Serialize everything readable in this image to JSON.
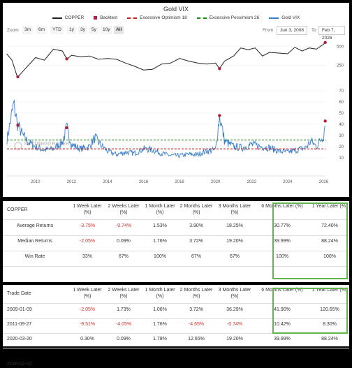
{
  "chart_data": {
    "type": "line",
    "title": "Gold VIX",
    "legend": [
      "COPPER",
      "Backtest",
      "Excessive Optimism 18",
      "Excessive Pessimism 26",
      "Gold VIX"
    ],
    "legend_position": "top",
    "x_ticks": [
      "2010",
      "2012",
      "2014",
      "2016",
      "2018",
      "2020",
      "2022",
      "2024",
      "2026"
    ],
    "x_range": [
      "2008-06-03",
      "2026-02-07"
    ],
    "upper_panel": {
      "name": "COPPER",
      "y_ticks": [
        250,
        500
      ],
      "scale": "log",
      "x": [
        2008.4,
        2008.7,
        2009.0,
        2009.5,
        2010.0,
        2010.5,
        2011.0,
        2011.5,
        2011.75,
        2012.0,
        2012.5,
        2013.0,
        2013.5,
        2014.0,
        2014.5,
        2015.0,
        2015.5,
        2016.0,
        2016.5,
        2017.0,
        2017.5,
        2018.0,
        2018.5,
        2019.0,
        2019.5,
        2020.0,
        2020.22,
        2020.5,
        2021.0,
        2021.4,
        2021.8,
        2022.2,
        2022.6,
        2023.0,
        2023.5,
        2024.0,
        2024.4,
        2024.8,
        2025.2,
        2025.6,
        2026.0,
        2026.1
      ],
      "values": [
        380,
        300,
        160,
        230,
        330,
        300,
        450,
        420,
        310,
        360,
        340,
        350,
        310,
        320,
        310,
        270,
        240,
        210,
        215,
        260,
        270,
        320,
        290,
        270,
        260,
        270,
        220,
        290,
        350,
        470,
        440,
        470,
        350,
        400,
        390,
        380,
        480,
        420,
        470,
        450,
        540,
        580
      ]
    },
    "lower_panel": {
      "name": "Gold VIX",
      "y_ticks": [
        10,
        20,
        30,
        40,
        50,
        60,
        70
      ],
      "ylim": [
        0,
        70
      ],
      "thresholds": [
        {
          "name": "Excessive Optimism 18",
          "value": 18
        },
        {
          "name": "Excessive Pessimism 26",
          "value": 26
        }
      ],
      "x": [
        2008.4,
        2008.8,
        2009.0,
        2009.3,
        2009.6,
        2010.0,
        2010.5,
        2011.0,
        2011.5,
        2011.74,
        2012.0,
        2012.5,
        2013.0,
        2013.3,
        2013.6,
        2014.0,
        2014.5,
        2015.0,
        2015.5,
        2016.0,
        2016.5,
        2017.0,
        2017.5,
        2018.0,
        2018.5,
        2019.0,
        2019.5,
        2020.0,
        2020.22,
        2020.5,
        2021.0,
        2021.5,
        2022.0,
        2022.5,
        2023.0,
        2023.5,
        2024.0,
        2024.5,
        2025.0,
        2025.3,
        2025.6,
        2026.0,
        2026.1
      ],
      "values": [
        25,
        58,
        40,
        30,
        24,
        20,
        17,
        18,
        24,
        37,
        22,
        18,
        20,
        28,
        22,
        16,
        13,
        15,
        14,
        18,
        17,
        14,
        12,
        12,
        13,
        13,
        16,
        17,
        48,
        25,
        20,
        19,
        22,
        20,
        19,
        16,
        15,
        17,
        19,
        25,
        20,
        30,
        45
      ]
    },
    "backtest_signals": [
      "2009-01-09",
      "2011-09-27",
      "2020-03-20",
      "2026-02-02"
    ],
    "watermark": {
      "line1": "SENTIMENTRADER",
      "line2": "DATA-DRIVEN MARKET INSIGHTS"
    }
  },
  "toolbar": {
    "zoom_label": "Zoom",
    "zoom_buttons": [
      "3m",
      "6m",
      "YTD",
      "1y",
      "3y",
      "5y",
      "10y",
      "All"
    ],
    "active": "All",
    "from_label": "From",
    "from_value": "Jun 3, 2008",
    "to_label": "To",
    "to_value": "Feb 7, 2026"
  },
  "summary_table": {
    "headers": [
      "COPPER",
      "1 Week Later (%)",
      "2 Weeks Later (%)",
      "1 Month Later (%)",
      "2 Months Later (%)",
      "3 Months Later (%)",
      "6 Months Later (%)",
      "1 Year Later (%)"
    ],
    "rows": [
      {
        "label": "Average Returns",
        "values": [
          "-3.75%",
          "-0.74%",
          "1.53%",
          "3.90%",
          "18.25%",
          "30.77%",
          "72.40%"
        ]
      },
      {
        "label": "Median Returns",
        "values": [
          "-2.05%",
          "0.09%",
          "1.76%",
          "3.72%",
          "19.20%",
          "39.99%",
          "88.24%"
        ]
      },
      {
        "label": "Win Rate",
        "values": [
          "33%",
          "67%",
          "100%",
          "67%",
          "67%",
          "100%",
          "100%"
        ]
      }
    ]
  },
  "trades_table": {
    "headers": [
      "Trade Date",
      "1 Week Later (%)",
      "2 Weeks Later (%)",
      "1 Month Later (%)",
      "2 Months Later (%)",
      "3 Months Later (%)",
      "6 Months Later (%)",
      "1 Year Later (%)"
    ],
    "rows": [
      {
        "date": "2009-01-09",
        "values": [
          "-2.05%",
          "1.73%",
          "1.06%",
          "3.72%",
          "36.29%",
          "41.90%",
          "120.65%"
        ]
      },
      {
        "date": "2011-09-27",
        "values": [
          "-9.51%",
          "-4.05%",
          "1.76%",
          "-4.65%",
          "-0.74%",
          "10.42%",
          "8.30%"
        ]
      },
      {
        "date": "2020-03-20",
        "values": [
          "0.30%",
          "0.09%",
          "1.78%",
          "12.65%",
          "19.20%",
          "39.99%",
          "88.24%"
        ]
      }
    ],
    "footer_date": "2026-02-02"
  },
  "colors": {
    "copper": "#222222",
    "gold_vix": "#3a7fcf",
    "optimism": "#c82020",
    "pessimism": "#1a8a1a",
    "backtest": "#b0203a",
    "negative": "#d03030",
    "highlight": "#62b64a"
  }
}
